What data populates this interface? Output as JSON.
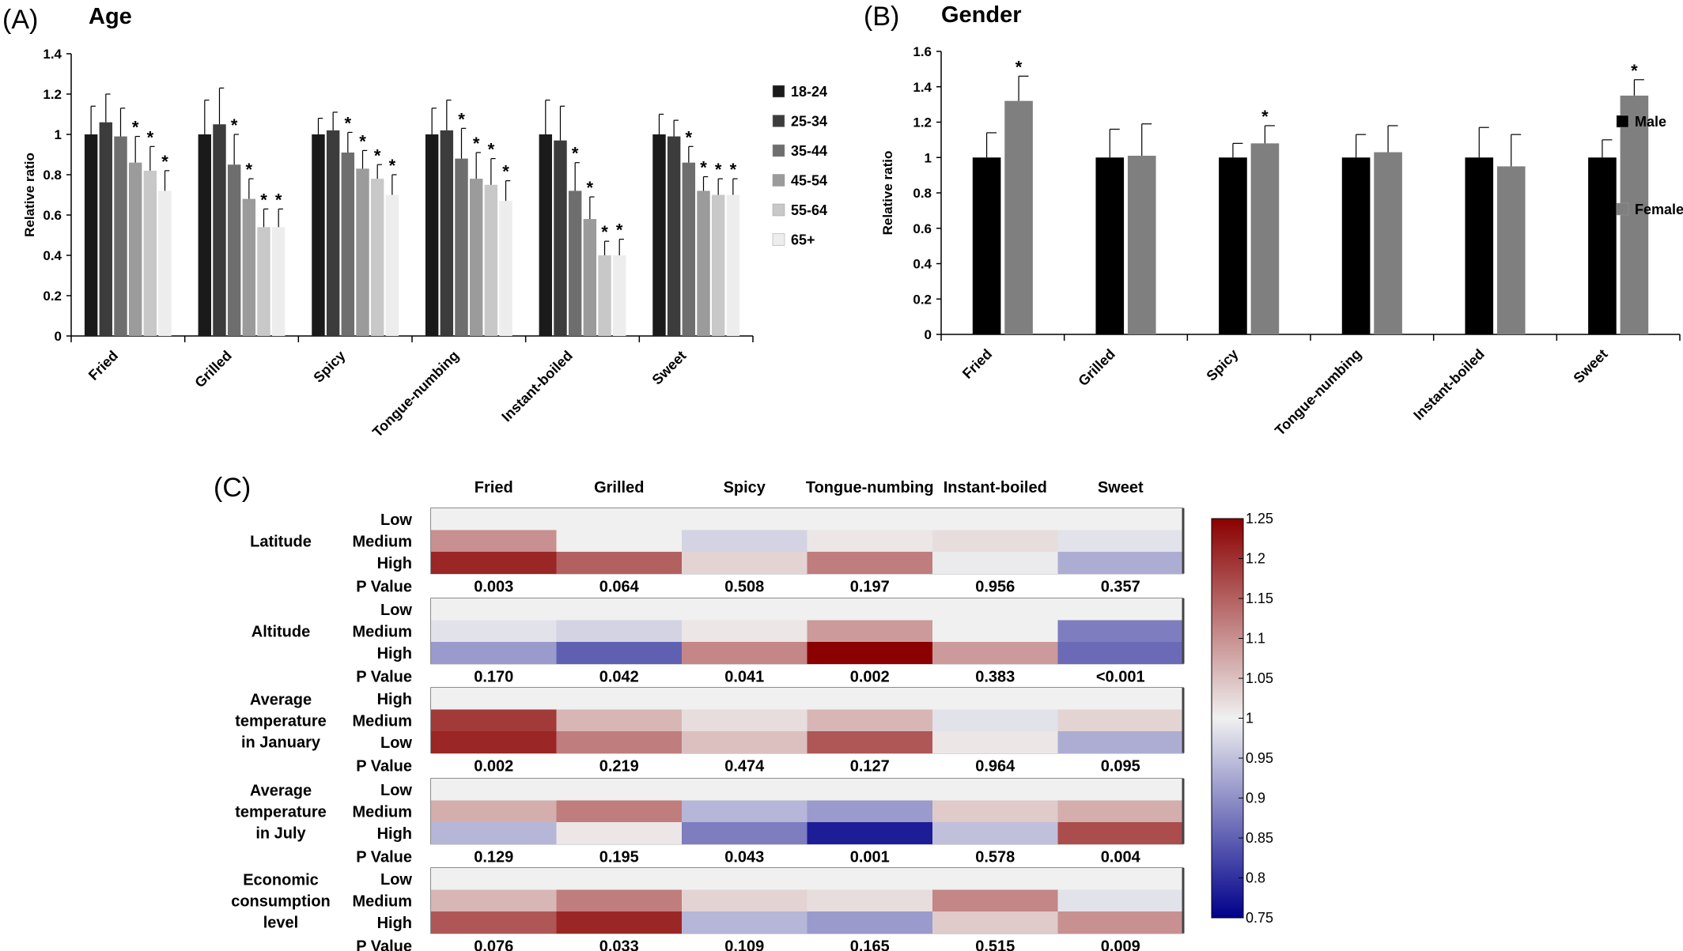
{
  "chart_data": [
    {
      "panel": "(A)",
      "type": "bar",
      "title": "Age",
      "ylabel": "Relative ratio",
      "ylim": [
        0,
        1.4
      ],
      "yticks": [
        "0",
        "0.2",
        "0.4",
        "0.6",
        "0.8",
        "1",
        "1.2",
        "1.4"
      ],
      "categories": [
        "Fried",
        "Grilled",
        "Spicy",
        "Tongue-numbing",
        "Instant-boiled",
        "Sweet"
      ],
      "legend_position": "right",
      "series": [
        {
          "name": "18-24",
          "color": "#1a1a1a",
          "values": [
            1.0,
            1.0,
            1.0,
            1.0,
            1.0,
            1.0
          ],
          "errors": [
            0.14,
            0.17,
            0.08,
            0.13,
            0.17,
            0.1
          ],
          "sig": [
            false,
            false,
            false,
            false,
            false,
            false
          ]
        },
        {
          "name": "25-34",
          "color": "#3c3c3c",
          "values": [
            1.06,
            1.05,
            1.02,
            1.02,
            0.97,
            0.99
          ],
          "errors": [
            0.14,
            0.18,
            0.09,
            0.15,
            0.17,
            0.08
          ],
          "sig": [
            false,
            false,
            false,
            false,
            false,
            false
          ]
        },
        {
          "name": "35-44",
          "color": "#6e6e6e",
          "values": [
            0.99,
            0.85,
            0.91,
            0.88,
            0.72,
            0.86
          ],
          "errors": [
            0.14,
            0.15,
            0.1,
            0.15,
            0.14,
            0.08
          ],
          "sig": [
            false,
            true,
            true,
            true,
            true,
            true
          ]
        },
        {
          "name": "45-54",
          "color": "#9b9b9b",
          "values": [
            0.86,
            0.68,
            0.83,
            0.78,
            0.58,
            0.72
          ],
          "errors": [
            0.13,
            0.1,
            0.09,
            0.13,
            0.11,
            0.07
          ],
          "sig": [
            true,
            true,
            true,
            true,
            true,
            true
          ]
        },
        {
          "name": "55-64",
          "color": "#c8c8c8",
          "values": [
            0.82,
            0.54,
            0.78,
            0.75,
            0.4,
            0.7
          ],
          "errors": [
            0.12,
            0.09,
            0.07,
            0.13,
            0.07,
            0.08
          ],
          "sig": [
            true,
            true,
            true,
            true,
            true,
            true
          ]
        },
        {
          "name": "65+",
          "color": "#ededed",
          "values": [
            0.72,
            0.54,
            0.7,
            0.67,
            0.4,
            0.7
          ],
          "errors": [
            0.1,
            0.09,
            0.1,
            0.1,
            0.08,
            0.08
          ],
          "sig": [
            true,
            true,
            true,
            true,
            true,
            true
          ]
        }
      ],
      "sig_marker": "*"
    },
    {
      "panel": "(B)",
      "type": "bar",
      "title": "Gender",
      "ylabel": "Relative ratio",
      "ylim": [
        0,
        1.6
      ],
      "yticks": [
        "0",
        "0.2",
        "0.4",
        "0.6",
        "0.8",
        "1",
        "1.2",
        "1.4",
        "1.6"
      ],
      "categories": [
        "Fried",
        "Grilled",
        "Spicy",
        "Tongue-numbing",
        "Instant-boiled",
        "Sweet"
      ],
      "legend_position": "right",
      "series": [
        {
          "name": "Male",
          "color": "#000000",
          "values": [
            1.0,
            1.0,
            1.0,
            1.0,
            1.0,
            1.0
          ],
          "errors": [
            0.14,
            0.16,
            0.08,
            0.13,
            0.17,
            0.1
          ],
          "sig": [
            false,
            false,
            false,
            false,
            false,
            false
          ]
        },
        {
          "name": "Female",
          "color": "#7f7f7f",
          "values": [
            1.32,
            1.01,
            1.08,
            1.03,
            0.95,
            1.35
          ],
          "errors": [
            0.14,
            0.18,
            0.1,
            0.15,
            0.18,
            0.09
          ],
          "sig": [
            true,
            false,
            true,
            false,
            false,
            true
          ]
        }
      ],
      "sig_marker": "*"
    },
    {
      "panel": "(C)",
      "type": "heatmap",
      "columns": [
        "Fried",
        "Grilled",
        "Spicy",
        "Tongue-numbing",
        "Instant-boiled",
        "Sweet"
      ],
      "pvalue_label": "P Value",
      "colorbar": {
        "min": 0.75,
        "max": 1.25,
        "ticks": [
          "0.75",
          "0.8",
          "0.85",
          "0.9",
          "0.95",
          "1",
          "1.05",
          "1.1",
          "1.15",
          "1.2",
          "1.25"
        ],
        "low_color": "#00008b",
        "mid_color": "#f0f0f0",
        "high_color": "#8b0000"
      },
      "groups": [
        {
          "label": [
            "Latitude"
          ],
          "rows": [
            {
              "level": "Low",
              "values": [
                1.0,
                1.0,
                1.0,
                1.0,
                1.0,
                1.0
              ]
            },
            {
              "level": "Medium",
              "values": [
                1.1,
                1.0,
                0.97,
                1.01,
                1.02,
                0.985
              ]
            },
            {
              "level": "High",
              "values": [
                1.21,
                1.15,
                1.03,
                1.12,
                0.995,
                0.93
              ]
            }
          ],
          "pvalues": [
            "0.003",
            "0.064",
            "0.508",
            "0.197",
            "0.956",
            "0.357"
          ]
        },
        {
          "label": [
            "Altitude"
          ],
          "rows": [
            {
              "level": "Low",
              "values": [
                1.0,
                1.0,
                1.0,
                1.0,
                1.0,
                1.0
              ]
            },
            {
              "level": "Medium",
              "values": [
                0.985,
                0.97,
                1.01,
                1.09,
                1.0,
                0.88
              ]
            },
            {
              "level": "High",
              "values": [
                0.91,
                0.85,
                1.11,
                1.25,
                1.09,
                0.86
              ]
            }
          ],
          "pvalues": [
            "0.170",
            "0.042",
            "0.041",
            "0.002",
            "0.383",
            "<0.001"
          ]
        },
        {
          "label": [
            "Average",
            "temperature",
            "in January"
          ],
          "rows": [
            {
              "level": "High",
              "values": [
                1.0,
                1.0,
                1.0,
                1.0,
                1.0,
                1.0
              ]
            },
            {
              "level": "Medium",
              "values": [
                1.19,
                1.06,
                1.02,
                1.06,
                0.985,
                1.03
              ]
            },
            {
              "level": "Low",
              "values": [
                1.21,
                1.12,
                1.05,
                1.16,
                1.01,
                0.93
              ]
            }
          ],
          "pvalues": [
            "0.002",
            "0.219",
            "0.474",
            "0.127",
            "0.964",
            "0.095"
          ]
        },
        {
          "label": [
            "Average",
            "temperature",
            "in July"
          ],
          "rows": [
            {
              "level": "Low",
              "values": [
                1.0,
                1.0,
                1.0,
                1.0,
                1.0,
                1.0
              ]
            },
            {
              "level": "Medium",
              "values": [
                1.07,
                1.12,
                0.94,
                0.91,
                1.04,
                1.07
              ]
            },
            {
              "level": "High",
              "values": [
                0.94,
                1.01,
                0.88,
                0.78,
                0.95,
                1.17
              ]
            }
          ],
          "pvalues": [
            "0.129",
            "0.195",
            "0.043",
            "0.001",
            "0.578",
            "0.004"
          ]
        },
        {
          "label": [
            "Economic",
            "consumption",
            "level"
          ],
          "rows": [
            {
              "level": "Low",
              "values": [
                1.0,
                1.0,
                1.0,
                1.0,
                1.0,
                1.0
              ]
            },
            {
              "level": "Medium",
              "values": [
                1.06,
                1.12,
                1.03,
                1.02,
                1.11,
                0.985
              ]
            },
            {
              "level": "High",
              "values": [
                1.16,
                1.21,
                0.94,
                0.91,
                1.04,
                1.1
              ]
            }
          ],
          "pvalues": [
            "0.076",
            "0.033",
            "0.109",
            "0.165",
            "0.515",
            "0.009"
          ]
        }
      ]
    }
  ]
}
